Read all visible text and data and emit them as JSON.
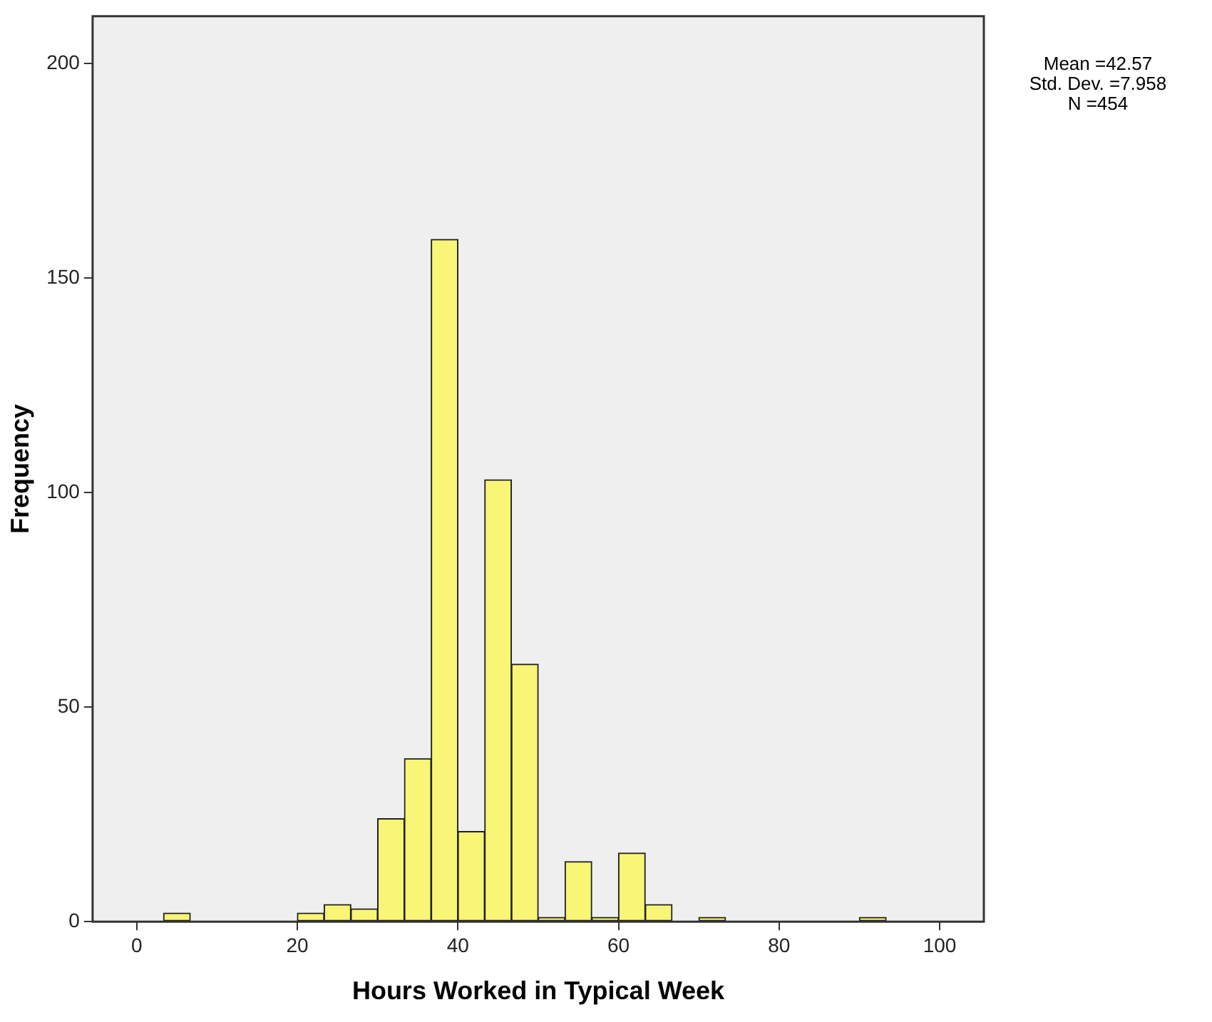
{
  "chart_data": {
    "type": "histogram",
    "xlabel": "Hours Worked in Typical Week",
    "ylabel": "Frequency",
    "bins": [
      3.33,
      6.67,
      10,
      13.33,
      16.67,
      20,
      23.33,
      26.67,
      30,
      33.33,
      36.67,
      40,
      43.33,
      46.67,
      50,
      53.33,
      56.67,
      60,
      63.33,
      66.67,
      70,
      73.33,
      76.67,
      80,
      83.33,
      86.67,
      90,
      93.33
    ],
    "values": [
      2,
      0,
      0,
      0,
      0,
      2,
      4,
      3,
      24,
      38,
      159,
      21,
      103,
      60,
      1,
      14,
      1,
      16,
      4,
      0,
      1,
      0,
      0,
      0,
      0,
      0,
      1
    ],
    "color": "#f9f677",
    "xlim": [
      -5.5,
      105.5
    ],
    "xticks": [
      0,
      20,
      40,
      60,
      80,
      100
    ],
    "ylim": [
      0,
      211
    ],
    "yticks": [
      0,
      50,
      100,
      150,
      200
    ],
    "grid": false,
    "legend": false,
    "annotations": [
      "Mean =42.57",
      "Std. Dev. =7.958",
      "N =454"
    ]
  }
}
